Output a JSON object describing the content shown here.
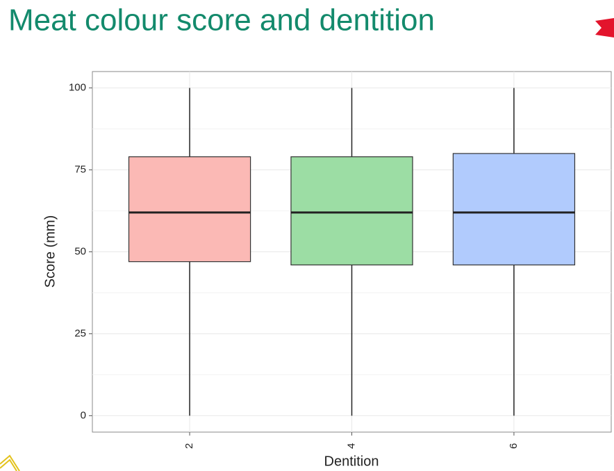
{
  "chart_data": {
    "type": "box",
    "title": "Meat colour score and dentition",
    "x_label": "Dentition",
    "y_label": "Score (mm)",
    "categories": [
      "2",
      "4",
      "6"
    ],
    "min": [
      0,
      0,
      0
    ],
    "q1": [
      47,
      46,
      46
    ],
    "median": [
      62,
      62,
      62
    ],
    "q3": [
      79,
      79,
      80
    ],
    "max": [
      100,
      100,
      100
    ],
    "colors": [
      "#fbb9b5",
      "#9cdda4",
      "#b1cbfd"
    ],
    "ylim": [
      -5,
      105
    ],
    "yticks": [
      0,
      25,
      50,
      75,
      100
    ],
    "grid": true
  }
}
